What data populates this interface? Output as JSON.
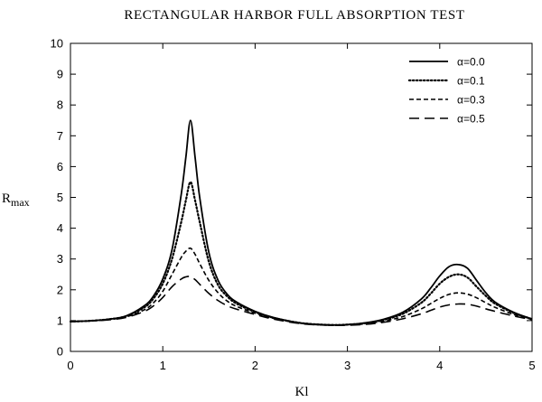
{
  "chart_data": {
    "type": "line",
    "title": "RECTANGULAR HARBOR FULL ABSORPTION TEST",
    "xlabel": "Kl",
    "ylabel": {
      "main": "R",
      "sub": "max"
    },
    "xlim": [
      0,
      5
    ],
    "ylim": [
      0,
      10
    ],
    "xticks": [
      "0",
      "1",
      "2",
      "3",
      "4",
      "5"
    ],
    "yticks": [
      "0",
      "1",
      "2",
      "3",
      "4",
      "5",
      "6",
      "7",
      "8",
      "9",
      "10"
    ],
    "grid": false,
    "legend_position": "top-right",
    "series": [
      {
        "name": "α=0.0",
        "dash": "solid",
        "x": [
          0,
          0.2,
          0.4,
          0.6,
          0.8,
          0.9,
          1.0,
          1.1,
          1.2,
          1.25,
          1.3,
          1.35,
          1.4,
          1.5,
          1.6,
          1.7,
          1.8,
          2.0,
          2.2,
          2.5,
          2.8,
          3.0,
          3.2,
          3.4,
          3.6,
          3.8,
          3.9,
          4.0,
          4.1,
          4.2,
          4.3,
          4.4,
          4.5,
          4.6,
          4.8,
          5.0
        ],
        "y": [
          0.97,
          0.99,
          1.04,
          1.15,
          1.48,
          1.8,
          2.35,
          3.3,
          5.1,
          6.3,
          7.5,
          6.3,
          5.0,
          3.2,
          2.3,
          1.85,
          1.6,
          1.3,
          1.1,
          0.92,
          0.86,
          0.87,
          0.93,
          1.05,
          1.27,
          1.7,
          2.05,
          2.45,
          2.75,
          2.82,
          2.7,
          2.3,
          1.9,
          1.6,
          1.27,
          1.05
        ]
      },
      {
        "name": "α=0.1",
        "dash": "dotted",
        "x": [
          0,
          0.2,
          0.4,
          0.6,
          0.8,
          0.9,
          1.0,
          1.1,
          1.2,
          1.25,
          1.3,
          1.35,
          1.4,
          1.5,
          1.6,
          1.7,
          1.8,
          2.0,
          2.2,
          2.5,
          2.8,
          3.0,
          3.2,
          3.4,
          3.6,
          3.8,
          3.9,
          4.0,
          4.1,
          4.2,
          4.3,
          4.4,
          4.5,
          4.6,
          4.8,
          5.0
        ],
        "y": [
          0.97,
          0.99,
          1.04,
          1.14,
          1.43,
          1.72,
          2.2,
          3.0,
          4.2,
          4.9,
          5.5,
          4.9,
          4.2,
          2.9,
          2.15,
          1.78,
          1.55,
          1.28,
          1.09,
          0.92,
          0.86,
          0.87,
          0.92,
          1.03,
          1.22,
          1.58,
          1.87,
          2.2,
          2.42,
          2.5,
          2.4,
          2.1,
          1.8,
          1.55,
          1.25,
          1.05
        ]
      },
      {
        "name": "α=0.3",
        "dash": "short-dash",
        "x": [
          0,
          0.2,
          0.4,
          0.6,
          0.8,
          0.9,
          1.0,
          1.1,
          1.2,
          1.25,
          1.3,
          1.35,
          1.4,
          1.5,
          1.6,
          1.7,
          1.8,
          2.0,
          2.2,
          2.5,
          2.8,
          3.0,
          3.2,
          3.4,
          3.6,
          3.8,
          3.9,
          4.0,
          4.1,
          4.2,
          4.3,
          4.4,
          4.5,
          4.6,
          4.8,
          5.0
        ],
        "y": [
          0.97,
          0.99,
          1.03,
          1.12,
          1.35,
          1.58,
          1.95,
          2.5,
          3.05,
          3.25,
          3.35,
          3.15,
          2.85,
          2.3,
          1.9,
          1.63,
          1.46,
          1.24,
          1.07,
          0.91,
          0.85,
          0.86,
          0.9,
          0.99,
          1.13,
          1.38,
          1.55,
          1.72,
          1.85,
          1.9,
          1.86,
          1.74,
          1.58,
          1.43,
          1.2,
          1.04
        ]
      },
      {
        "name": "α=0.5",
        "dash": "long-dash",
        "x": [
          0,
          0.2,
          0.4,
          0.6,
          0.8,
          0.9,
          1.0,
          1.1,
          1.2,
          1.25,
          1.3,
          1.35,
          1.4,
          1.5,
          1.6,
          1.7,
          1.8,
          2.0,
          2.2,
          2.5,
          2.8,
          3.0,
          3.2,
          3.4,
          3.6,
          3.8,
          3.9,
          4.0,
          4.1,
          4.2,
          4.3,
          4.4,
          4.5,
          4.6,
          4.8,
          5.0
        ],
        "y": [
          0.97,
          0.99,
          1.02,
          1.1,
          1.3,
          1.48,
          1.75,
          2.1,
          2.35,
          2.42,
          2.43,
          2.33,
          2.18,
          1.88,
          1.65,
          1.48,
          1.37,
          1.2,
          1.05,
          0.9,
          0.85,
          0.85,
          0.88,
          0.95,
          1.06,
          1.22,
          1.33,
          1.44,
          1.51,
          1.54,
          1.53,
          1.47,
          1.38,
          1.3,
          1.15,
          1.03
        ]
      }
    ]
  }
}
